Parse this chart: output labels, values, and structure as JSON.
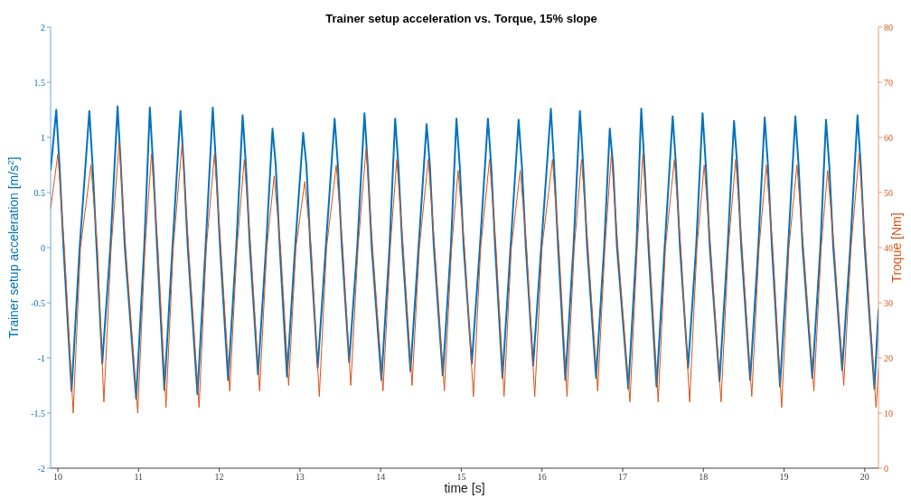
{
  "chart_data": {
    "type": "line",
    "title": "Trainer setup acceleration vs. Torque, 15% slope",
    "xlabel": "time [s]",
    "ylabel": "Trainer setup acceleration [m/s$^{2}$]",
    "y2label": "Troque [Nm]",
    "marker": "none",
    "xlim": [
      9.91,
      20.17
    ],
    "xticks": [
      10,
      11,
      12,
      13,
      14,
      15,
      16,
      17,
      18,
      19,
      20
    ],
    "ylim": [
      -2,
      2
    ],
    "yticks": [
      -2,
      -1.5,
      -1,
      -0.5,
      0,
      0.5,
      1,
      1.5,
      2
    ],
    "y2lim": [
      0,
      80
    ],
    "y2ticks": [
      0,
      10,
      20,
      30,
      40,
      50,
      60,
      70,
      80
    ],
    "series": [
      {
        "color": "#d95319",
        "axis": "y2",
        "x": [
          9.91,
          10.0,
          10.08,
          10.19,
          10.28,
          10.41,
          10.49,
          10.57,
          10.66,
          10.76,
          10.84,
          10.99,
          11.08,
          11.16,
          11.24,
          11.34,
          11.43,
          11.54,
          11.62,
          11.75,
          11.84,
          11.94,
          12.02,
          12.13,
          12.22,
          12.31,
          12.39,
          12.5,
          12.59,
          12.68,
          12.76,
          12.86,
          12.95,
          13.06,
          13.14,
          13.24,
          13.33,
          13.45,
          13.53,
          13.63,
          13.72,
          13.82,
          13.9,
          14.03,
          14.12,
          14.2,
          14.28,
          14.39,
          14.48,
          14.59,
          14.67,
          14.79,
          14.88,
          14.96,
          15.04,
          15.15,
          15.24,
          15.35,
          15.43,
          15.53,
          15.62,
          15.73,
          15.81,
          15.91,
          16.0,
          16.13,
          16.21,
          16.31,
          16.4,
          16.49,
          16.57,
          16.69,
          16.78,
          16.86,
          16.94,
          17.09,
          17.18,
          17.25,
          17.33,
          17.44,
          17.53,
          17.64,
          17.72,
          17.83,
          17.92,
          18.01,
          18.09,
          18.22,
          18.31,
          18.4,
          18.48,
          18.6,
          18.69,
          18.78,
          18.86,
          18.97,
          19.06,
          19.16,
          19.24,
          19.37,
          19.46,
          19.54,
          19.62,
          19.74,
          19.83,
          19.93,
          20.01,
          20.14,
          20.17
        ],
        "values": [
          47,
          57,
          40,
          10,
          40,
          55,
          40,
          12,
          40,
          59,
          40,
          10,
          40,
          57,
          40,
          11,
          40,
          59,
          40,
          11,
          40,
          57,
          40,
          14,
          40,
          56,
          40,
          14,
          40,
          53,
          40,
          15,
          40,
          52,
          40,
          13,
          40,
          55,
          40,
          15,
          40,
          58,
          40,
          14,
          40,
          56,
          40,
          15,
          40,
          56,
          40,
          14,
          40,
          54,
          40,
          13,
          40,
          56,
          40,
          13,
          40,
          54,
          40,
          13,
          40,
          56,
          40,
          13,
          40,
          56,
          40,
          14,
          40,
          57,
          40,
          12,
          40,
          57,
          40,
          12,
          40,
          56,
          40,
          12,
          40,
          55,
          40,
          12,
          40,
          56,
          40,
          13,
          40,
          55,
          40,
          11,
          40,
          55,
          40,
          14,
          40,
          54,
          40,
          15,
          40,
          57,
          40,
          11,
          18
        ]
      },
      {
        "color": "#0072bd",
        "axis": "y",
        "x": [
          9.91,
          9.98,
          10.02,
          10.07,
          10.17,
          10.27,
          10.39,
          10.43,
          10.48,
          10.55,
          10.65,
          10.74,
          10.78,
          10.83,
          10.97,
          11.07,
          11.14,
          11.18,
          11.23,
          11.32,
          11.42,
          11.52,
          11.56,
          11.61,
          11.73,
          11.83,
          11.92,
          11.96,
          12.01,
          12.11,
          12.21,
          12.29,
          12.33,
          12.38,
          12.48,
          12.58,
          12.66,
          12.7,
          12.75,
          12.84,
          12.94,
          13.04,
          13.08,
          13.13,
          13.22,
          13.32,
          13.43,
          13.47,
          13.52,
          13.61,
          13.71,
          13.8,
          13.84,
          13.89,
          14.01,
          14.11,
          14.18,
          14.22,
          14.27,
          14.37,
          14.47,
          14.57,
          14.61,
          14.66,
          14.77,
          14.87,
          14.94,
          14.98,
          15.03,
          15.13,
          15.23,
          15.33,
          15.37,
          15.42,
          15.51,
          15.61,
          15.71,
          15.75,
          15.8,
          15.89,
          15.99,
          16.11,
          16.15,
          16.2,
          16.29,
          16.39,
          16.47,
          16.51,
          16.56,
          16.67,
          16.77,
          16.84,
          16.88,
          16.93,
          17.07,
          17.17,
          17.23,
          17.27,
          17.32,
          17.42,
          17.52,
          17.62,
          17.66,
          17.71,
          17.81,
          17.91,
          17.99,
          18.03,
          18.08,
          18.2,
          18.3,
          18.38,
          18.42,
          18.47,
          18.58,
          18.68,
          18.76,
          18.8,
          18.85,
          18.95,
          19.05,
          19.14,
          19.18,
          19.23,
          19.35,
          19.45,
          19.52,
          19.56,
          19.61,
          19.72,
          19.82,
          19.91,
          19.95,
          20.0,
          20.12,
          20.17
        ],
        "values": [
          0.7,
          1.25,
          0.75,
          0,
          -1.3,
          0,
          1.24,
          0.75,
          0,
          -1.05,
          0,
          1.28,
          0.75,
          0,
          -1.37,
          0,
          1.27,
          0.75,
          0,
          -1.29,
          0,
          1.24,
          0.75,
          0,
          -1.33,
          0,
          1.27,
          0.75,
          0,
          -1.2,
          0,
          1.2,
          0.75,
          0,
          -1.15,
          0,
          1.08,
          0.75,
          0,
          -1.17,
          0,
          1.04,
          0.75,
          0,
          -1.09,
          0,
          1.17,
          0.75,
          0,
          -1.04,
          0,
          1.22,
          0.75,
          0,
          -1.2,
          0,
          1.17,
          0.75,
          0,
          -1.12,
          0,
          1.12,
          0.75,
          0,
          -1.16,
          0,
          1.17,
          0.75,
          0,
          -1.05,
          0,
          1.17,
          0.75,
          0,
          -1.18,
          0,
          1.16,
          0.75,
          0,
          -1.07,
          0,
          1.26,
          0.75,
          0,
          -1.2,
          0,
          1.24,
          0.75,
          0,
          -1.18,
          0,
          1.08,
          0.75,
          0,
          -1.28,
          0,
          1.26,
          0.75,
          0,
          -1.26,
          0,
          1.19,
          0.75,
          0,
          -1.09,
          0,
          1.22,
          0.75,
          0,
          -1.21,
          0,
          1.15,
          0.75,
          0,
          -1.2,
          0,
          1.18,
          0.75,
          0,
          -1.26,
          0,
          1.19,
          0.75,
          0,
          -1.18,
          0,
          1.16,
          0.75,
          0,
          -1.11,
          0,
          1.2,
          0.75,
          0,
          -1.28,
          -0.56
        ]
      }
    ]
  }
}
